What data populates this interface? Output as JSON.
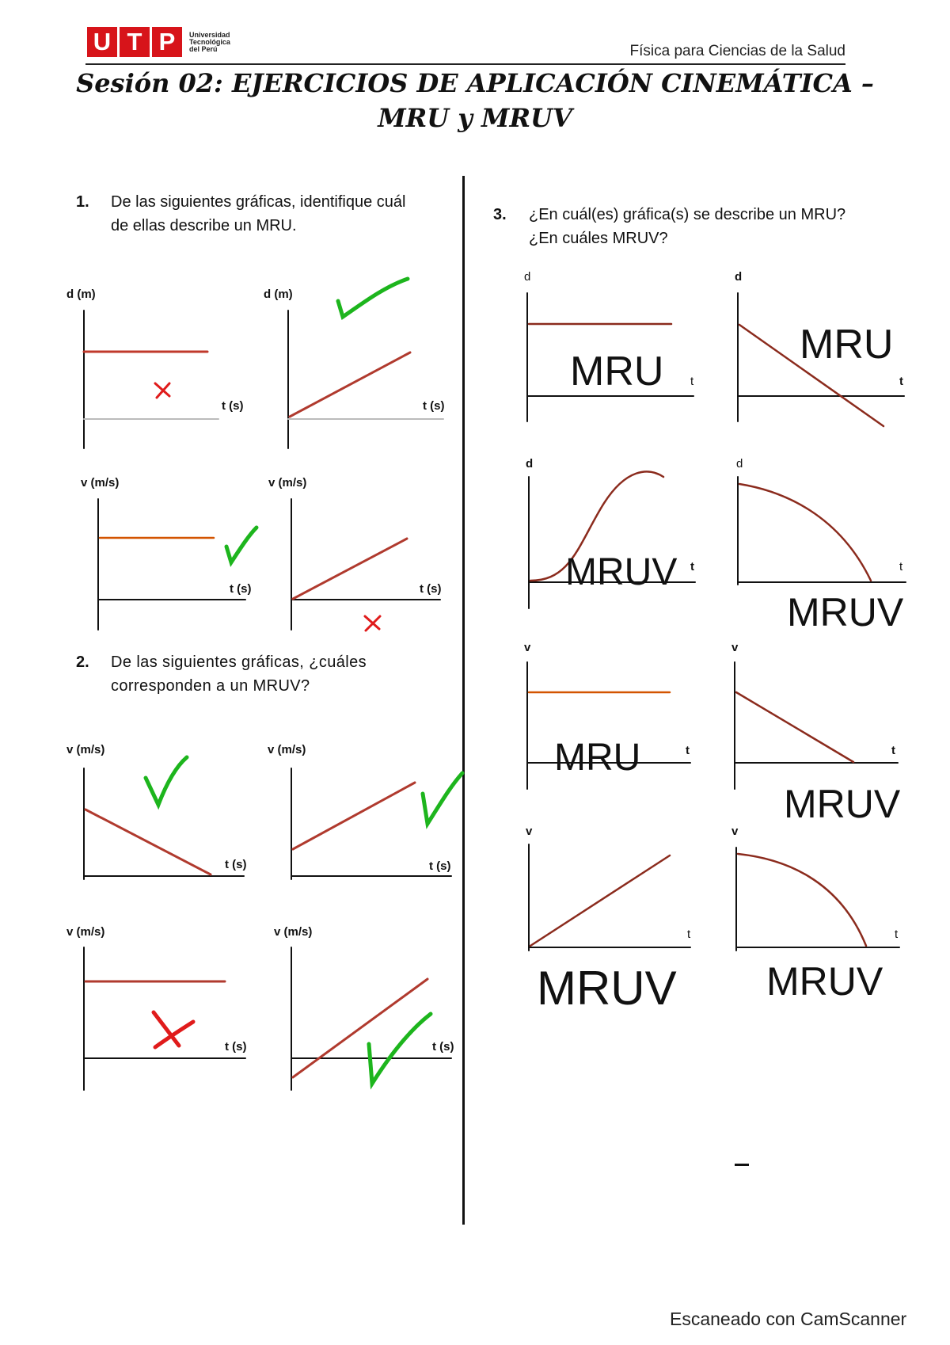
{
  "header": {
    "logo_letters": [
      "U",
      "T",
      "P"
    ],
    "logo_caption": [
      "Universidad",
      "Tecnológica",
      "del Perú"
    ],
    "course": "Física para Ciencias de la Salud"
  },
  "title": {
    "line1": "Sesión 02: EJERCICIOS DE APLICACIÓN CINEMÁTICA –",
    "line2": "MRU y MRUV"
  },
  "q1": {
    "number": "1.",
    "line1": "De las siguientes gráficas, identifique cuál",
    "line2": "de ellas describe un MRU."
  },
  "q2": {
    "number": "2.",
    "line1": "De las siguientes gráficas, ¿cuáles",
    "line2": "corresponden a un MRUV?"
  },
  "q3": {
    "number": "3.",
    "line1": "¿En cuál(es) gráfica(s) se describe un MRU?",
    "line2": "¿En cuáles MRUV?"
  },
  "axis_labels": {
    "d_m": "d (m)",
    "v_ms": "v (m/s)",
    "t_s": "t (s)",
    "d": "d",
    "v": "v",
    "t": "t"
  },
  "answers": {
    "mru": "MRU",
    "mruv": "MRUV"
  },
  "marks": {
    "check_color": "#1db51d",
    "cross_color": "#e01b1b",
    "line_color": "#a33a2a"
  },
  "footer": "Escaneado con CamScanner"
}
